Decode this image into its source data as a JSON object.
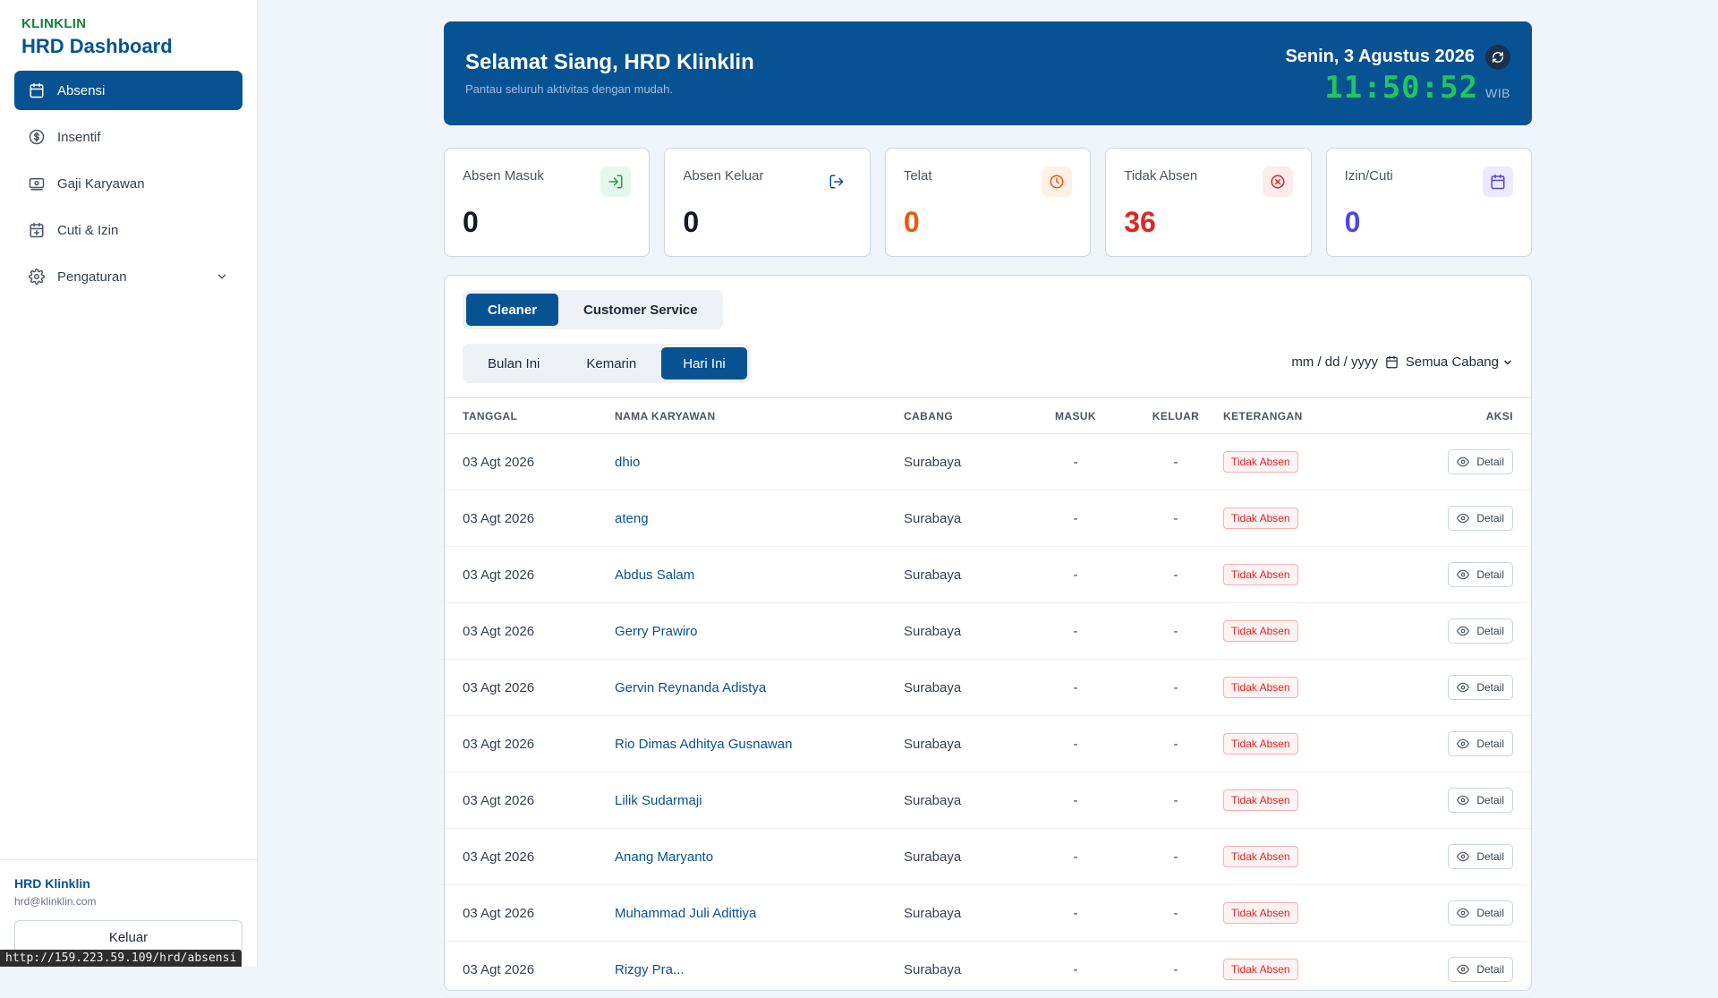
{
  "sidebar": {
    "brand_small": "KLINKLIN",
    "brand_title": "HRD Dashboard",
    "items": [
      {
        "label": "Absensi",
        "icon": "calendar-icon",
        "active": true
      },
      {
        "label": "Insentif",
        "icon": "dollar-icon",
        "active": false
      },
      {
        "label": "Gaji Karyawan",
        "icon": "banknote-icon",
        "active": false
      },
      {
        "label": "Cuti & Izin",
        "icon": "calendar-plus-icon",
        "active": false
      },
      {
        "label": "Pengaturan",
        "icon": "gear-icon",
        "active": false
      }
    ],
    "user_name": "HRD Klinklin",
    "user_email": "hrd@klinklin.com",
    "logout_label": "Keluar"
  },
  "status_url": "http://159.223.59.109/hrd/absensi",
  "hero": {
    "greeting": "Selamat Siang, HRD Klinklin",
    "subtitle": "Pantau seluruh aktivitas dengan mudah.",
    "date": "Senin, 3 Agustus 2026",
    "time": "11:50:52",
    "timezone": "WIB"
  },
  "cards": [
    {
      "label": "Absen Masuk",
      "value": "0",
      "color": "#111827",
      "icon": "login-icon"
    },
    {
      "label": "Absen Keluar",
      "value": "0",
      "color": "#111827",
      "icon": "logout-icon"
    },
    {
      "label": "Telat",
      "value": "0",
      "color": "#ea580c",
      "icon": "clock-icon"
    },
    {
      "label": "Tidak Absen",
      "value": "36",
      "color": "#dc2626",
      "icon": "x-circle-icon"
    },
    {
      "label": "Izin/Cuti",
      "value": "0",
      "color": "#4f46e5",
      "icon": "calendar-icon"
    }
  ],
  "tabs_role": [
    {
      "label": "Cleaner",
      "active": true
    },
    {
      "label": "Customer Service",
      "active": false
    }
  ],
  "tabs_period": [
    {
      "label": "Bulan Ini",
      "active": false
    },
    {
      "label": "Kemarin",
      "active": false
    },
    {
      "label": "Hari Ini",
      "active": true
    }
  ],
  "filters": {
    "date_placeholder": "mm / dd / yyyy",
    "branch": "Semua Cabang"
  },
  "table": {
    "headers": {
      "date": "TANGGAL",
      "name": "NAMA KARYAWAN",
      "branch": "CABANG",
      "in": "MASUK",
      "out": "KELUAR",
      "note": "KETERANGAN",
      "action": "AKSI"
    },
    "detail_label": "Detail",
    "rows": [
      {
        "date": "03 Agt 2026",
        "name": "dhio",
        "branch": "Surabaya",
        "in": "-",
        "out": "-",
        "note": "Tidak Absen"
      },
      {
        "date": "03 Agt 2026",
        "name": "ateng",
        "branch": "Surabaya",
        "in": "-",
        "out": "-",
        "note": "Tidak Absen"
      },
      {
        "date": "03 Agt 2026",
        "name": "Abdus Salam",
        "branch": "Surabaya",
        "in": "-",
        "out": "-",
        "note": "Tidak Absen"
      },
      {
        "date": "03 Agt 2026",
        "name": "Gerry Prawiro",
        "branch": "Surabaya",
        "in": "-",
        "out": "-",
        "note": "Tidak Absen"
      },
      {
        "date": "03 Agt 2026",
        "name": "Gervin Reynanda Adistya",
        "branch": "Surabaya",
        "in": "-",
        "out": "-",
        "note": "Tidak Absen"
      },
      {
        "date": "03 Agt 2026",
        "name": "Rio Dimas Adhitya Gusnawan",
        "branch": "Surabaya",
        "in": "-",
        "out": "-",
        "note": "Tidak Absen"
      },
      {
        "date": "03 Agt 2026",
        "name": "Lilik Sudarmaji",
        "branch": "Surabaya",
        "in": "-",
        "out": "-",
        "note": "Tidak Absen"
      },
      {
        "date": "03 Agt 2026",
        "name": "Anang Maryanto",
        "branch": "Surabaya",
        "in": "-",
        "out": "-",
        "note": "Tidak Absen"
      },
      {
        "date": "03 Agt 2026",
        "name": "Muhammad Juli Adittiya",
        "branch": "Surabaya",
        "in": "-",
        "out": "-",
        "note": "Tidak Absen"
      },
      {
        "date": "03 Agt 2026",
        "name": "Rizgy Pra...",
        "branch": "Surabaya",
        "in": "-",
        "out": "-",
        "note": "Tidak Absen"
      }
    ]
  }
}
